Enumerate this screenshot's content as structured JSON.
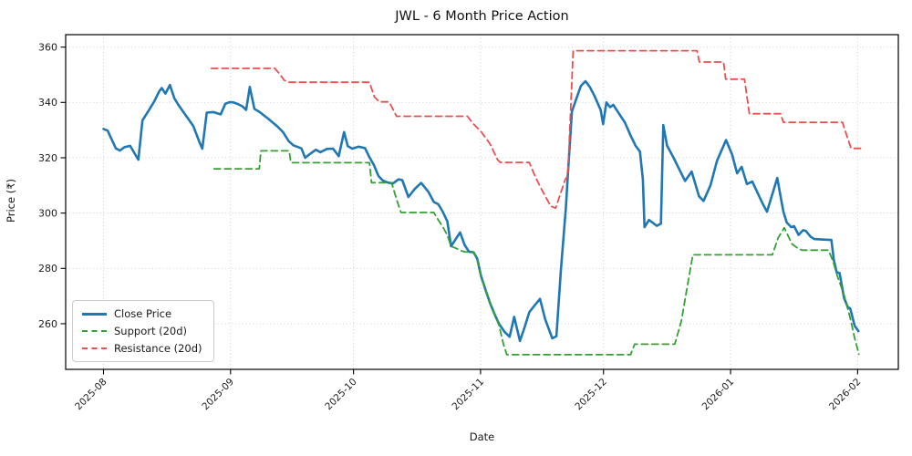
{
  "chart_data": {
    "type": "line",
    "title": "JWL - 6 Month Price Action",
    "xlabel": "Date",
    "ylabel": "Price (₹)",
    "x_unit": "calendar days since 2025-08-01",
    "x_start_date": "2025-08-01",
    "xlim": [
      0,
      184.7
    ],
    "ylim": [
      243.5,
      364.5
    ],
    "grid": true,
    "legend_position": "lower left",
    "x_ticks": [
      {
        "d": 0,
        "label": "2025-08"
      },
      {
        "d": 31,
        "label": "2025-09"
      },
      {
        "d": 61,
        "label": "2025-10"
      },
      {
        "d": 92,
        "label": "2025-11"
      },
      {
        "d": 122,
        "label": "2025-12"
      },
      {
        "d": 153,
        "label": "2026-01"
      },
      {
        "d": 184,
        "label": "2026-02"
      }
    ],
    "y_ticks": [
      260,
      280,
      300,
      320,
      340,
      360
    ],
    "series": [
      {
        "name": "Close Price",
        "color": "#1f77b4",
        "style": "solid",
        "width": 2.6,
        "points": [
          [
            0,
            330.4
          ],
          [
            1,
            329.8
          ],
          [
            3,
            323.4
          ],
          [
            4,
            322.6
          ],
          [
            5.1,
            323.8
          ],
          [
            6.5,
            324.3
          ],
          [
            8.5,
            319.3
          ],
          [
            9.5,
            333.5
          ],
          [
            11,
            337.0
          ],
          [
            12.4,
            340.4
          ],
          [
            13.5,
            343.8
          ],
          [
            14.2,
            345.2
          ],
          [
            15.1,
            343.2
          ],
          [
            16.2,
            346.3
          ],
          [
            17.3,
            341.5
          ],
          [
            18.4,
            338.8
          ],
          [
            20.6,
            334.2
          ],
          [
            21.9,
            331.5
          ],
          [
            23.5,
            325.3
          ],
          [
            24.1,
            323.3
          ],
          [
            25.2,
            336.3
          ],
          [
            26.8,
            336.5
          ],
          [
            28.6,
            335.7
          ],
          [
            29.7,
            339.5
          ],
          [
            30.8,
            340.1
          ],
          [
            31.7,
            340.0
          ],
          [
            32.8,
            339.4
          ],
          [
            33.9,
            338.6
          ],
          [
            34.8,
            337.3
          ],
          [
            35.7,
            345.6
          ],
          [
            36.8,
            337.7
          ],
          [
            38.1,
            336.5
          ],
          [
            40.1,
            334.2
          ],
          [
            42.3,
            331.5
          ],
          [
            43.8,
            329.3
          ],
          [
            45.2,
            326.0
          ],
          [
            46.3,
            324.5
          ],
          [
            48.3,
            323.4
          ],
          [
            49.2,
            320.0
          ],
          [
            50.5,
            321.5
          ],
          [
            51.8,
            322.9
          ],
          [
            52.9,
            322.0
          ],
          [
            54.5,
            323.2
          ],
          [
            56,
            323.3
          ],
          [
            57.4,
            320.6
          ],
          [
            58.7,
            329.3
          ],
          [
            59.6,
            324.2
          ],
          [
            60.7,
            323.3
          ],
          [
            62.2,
            324.0
          ],
          [
            63.8,
            323.5
          ],
          [
            64.9,
            320.2
          ],
          [
            66,
            317.3
          ],
          [
            67.1,
            313.4
          ],
          [
            68.2,
            311.7
          ],
          [
            69.5,
            311.0
          ],
          [
            70.6,
            310.7
          ],
          [
            72,
            312.2
          ],
          [
            72.9,
            311.9
          ],
          [
            74.4,
            305.8
          ],
          [
            76,
            308.8
          ],
          [
            77.5,
            310.9
          ],
          [
            79.3,
            307.6
          ],
          [
            80.6,
            304.0
          ],
          [
            81.7,
            303.2
          ],
          [
            82.8,
            300.4
          ],
          [
            83.9,
            297.0
          ],
          [
            84.8,
            288.0
          ],
          [
            85.9,
            290.5
          ],
          [
            87,
            293.0
          ],
          [
            88.1,
            288.5
          ],
          [
            89.2,
            286.0
          ],
          [
            90.3,
            285.8
          ],
          [
            91.2,
            283.5
          ],
          [
            92.1,
            277.3
          ],
          [
            93.2,
            272.3
          ],
          [
            94.3,
            267.5
          ],
          [
            95.4,
            263.5
          ],
          [
            96.5,
            260.0
          ],
          [
            97.9,
            257.0
          ],
          [
            99.1,
            255.3
          ],
          [
            100.2,
            262.5
          ],
          [
            101.6,
            253.8
          ],
          [
            102.7,
            258.5
          ],
          [
            103.9,
            264.2
          ],
          [
            105.2,
            266.6
          ],
          [
            106.5,
            269.0
          ],
          [
            107.8,
            261.5
          ],
          [
            109.5,
            254.7
          ],
          [
            110.5,
            255.5
          ],
          [
            111.6,
            279.3
          ],
          [
            112.8,
            301.6
          ],
          [
            113.5,
            318.3
          ],
          [
            114.3,
            336.7
          ],
          [
            115.4,
            341.5
          ],
          [
            116.5,
            346.0
          ],
          [
            117.6,
            347.7
          ],
          [
            118.7,
            345.5
          ],
          [
            119.8,
            342.3
          ],
          [
            121.3,
            337.3
          ],
          [
            121.9,
            332.2
          ],
          [
            122.7,
            340.0
          ],
          [
            123.6,
            338.3
          ],
          [
            124.4,
            339.1
          ],
          [
            125.7,
            336.1
          ],
          [
            127.2,
            332.8
          ],
          [
            128.7,
            327.8
          ],
          [
            129.8,
            324.4
          ],
          [
            130.9,
            322.2
          ],
          [
            131.6,
            312.2
          ],
          [
            132,
            294.9
          ],
          [
            133.1,
            297.5
          ],
          [
            134,
            296.5
          ],
          [
            135,
            295.4
          ],
          [
            136,
            296.2
          ],
          [
            136.6,
            331.8
          ],
          [
            137.5,
            324.4
          ],
          [
            139.1,
            320.0
          ],
          [
            140.4,
            316.1
          ],
          [
            141.9,
            311.6
          ],
          [
            143.5,
            315.0
          ],
          [
            145.3,
            306.1
          ],
          [
            146.4,
            304.4
          ],
          [
            148.1,
            310.0
          ],
          [
            149.7,
            318.9
          ],
          [
            151.9,
            326.4
          ],
          [
            153.4,
            321.1
          ],
          [
            154.6,
            314.4
          ],
          [
            155.7,
            316.7
          ],
          [
            157,
            310.5
          ],
          [
            158.3,
            311.4
          ],
          [
            159.6,
            307.3
          ],
          [
            160.8,
            303.5
          ],
          [
            161.9,
            300.5
          ],
          [
            163.2,
            306.9
          ],
          [
            164.4,
            312.7
          ],
          [
            165.2,
            306.0
          ],
          [
            165.9,
            300.5
          ],
          [
            166.7,
            296.6
          ],
          [
            167.8,
            294.9
          ],
          [
            168.5,
            295.3
          ],
          [
            169.6,
            292.1
          ],
          [
            170.7,
            293.8
          ],
          [
            171.4,
            293.5
          ],
          [
            172.5,
            291.5
          ],
          [
            173.4,
            290.6
          ],
          [
            175.6,
            290.4
          ],
          [
            177.6,
            290.3
          ],
          [
            178.2,
            283.0
          ],
          [
            178.9,
            278.6
          ],
          [
            179.6,
            278.3
          ],
          [
            180.7,
            269.3
          ],
          [
            181.6,
            266.0
          ],
          [
            182.2,
            265.5
          ],
          [
            183.3,
            259.2
          ],
          [
            184.2,
            257.3
          ]
        ]
      },
      {
        "name": "Support (20d)",
        "color": "#33a033",
        "style": "dashed",
        "width": 1.8,
        "points": [
          [
            27,
            316.0
          ],
          [
            38,
            316.0
          ],
          [
            38.4,
            322.5
          ],
          [
            45.3,
            322.5
          ],
          [
            45.7,
            318.2
          ],
          [
            64.9,
            318.2
          ],
          [
            65.4,
            311.0
          ],
          [
            70.3,
            311.0
          ],
          [
            71.5,
            305.0
          ],
          [
            72.6,
            300.2
          ],
          [
            80.6,
            300.2
          ],
          [
            81.7,
            297.5
          ],
          [
            82.8,
            295.0
          ],
          [
            83.9,
            292.0
          ],
          [
            84.8,
            288.0
          ],
          [
            86,
            287.3
          ],
          [
            87,
            286.5
          ],
          [
            88.1,
            286.0
          ],
          [
            90.3,
            285.8
          ],
          [
            91.2,
            283.5
          ],
          [
            92.1,
            277.3
          ],
          [
            93.2,
            272.3
          ],
          [
            94.3,
            267.5
          ],
          [
            95.4,
            263.5
          ],
          [
            96.5,
            259.5
          ],
          [
            97.6,
            252.5
          ],
          [
            98.4,
            248.8
          ],
          [
            128.6,
            248.8
          ],
          [
            129.6,
            252.6
          ],
          [
            139.4,
            252.6
          ],
          [
            141,
            261.0
          ],
          [
            142.5,
            274.0
          ],
          [
            143.8,
            284.9
          ],
          [
            163.2,
            284.9
          ],
          [
            164.6,
            291.0
          ],
          [
            166.1,
            294.7
          ],
          [
            168,
            288.8
          ],
          [
            169.6,
            287.1
          ],
          [
            170.5,
            286.6
          ],
          [
            176.9,
            286.6
          ],
          [
            178,
            282.6
          ],
          [
            179.1,
            277.1
          ],
          [
            180.7,
            270.4
          ],
          [
            182.2,
            262.0
          ],
          [
            183.3,
            254.7
          ],
          [
            184.3,
            249.0
          ]
        ]
      },
      {
        "name": "Resistance (20d)",
        "color": "#ec4e4e",
        "style": "dashed",
        "width": 1.8,
        "points": [
          [
            26.3,
            352.3
          ],
          [
            41.8,
            352.3
          ],
          [
            42.8,
            350.6
          ],
          [
            44.1,
            348.0
          ],
          [
            45.2,
            347.3
          ],
          [
            64.9,
            347.3
          ],
          [
            66.1,
            342.0
          ],
          [
            67.3,
            340.2
          ],
          [
            69.7,
            340.2
          ],
          [
            71.5,
            335.0
          ],
          [
            88.8,
            335.0
          ],
          [
            90.1,
            332.5
          ],
          [
            92.1,
            329.5
          ],
          [
            94.3,
            325.0
          ],
          [
            96.1,
            319.4
          ],
          [
            96.8,
            318.3
          ],
          [
            103.9,
            318.3
          ],
          [
            105.4,
            313.0
          ],
          [
            107,
            308.3
          ],
          [
            109.1,
            302.5
          ],
          [
            110.3,
            301.8
          ],
          [
            112.7,
            312.2
          ],
          [
            113.3,
            313.5
          ],
          [
            114.6,
            358.7
          ],
          [
            144.8,
            358.7
          ],
          [
            145.4,
            354.6
          ],
          [
            151.3,
            354.6
          ],
          [
            151.8,
            348.4
          ],
          [
            156.4,
            348.4
          ],
          [
            157.6,
            335.9
          ],
          [
            165.2,
            335.9
          ],
          [
            165.9,
            332.8
          ],
          [
            180.3,
            332.8
          ],
          [
            181.3,
            328.3
          ],
          [
            182.4,
            323.4
          ],
          [
            184.7,
            323.4
          ]
        ]
      }
    ]
  }
}
